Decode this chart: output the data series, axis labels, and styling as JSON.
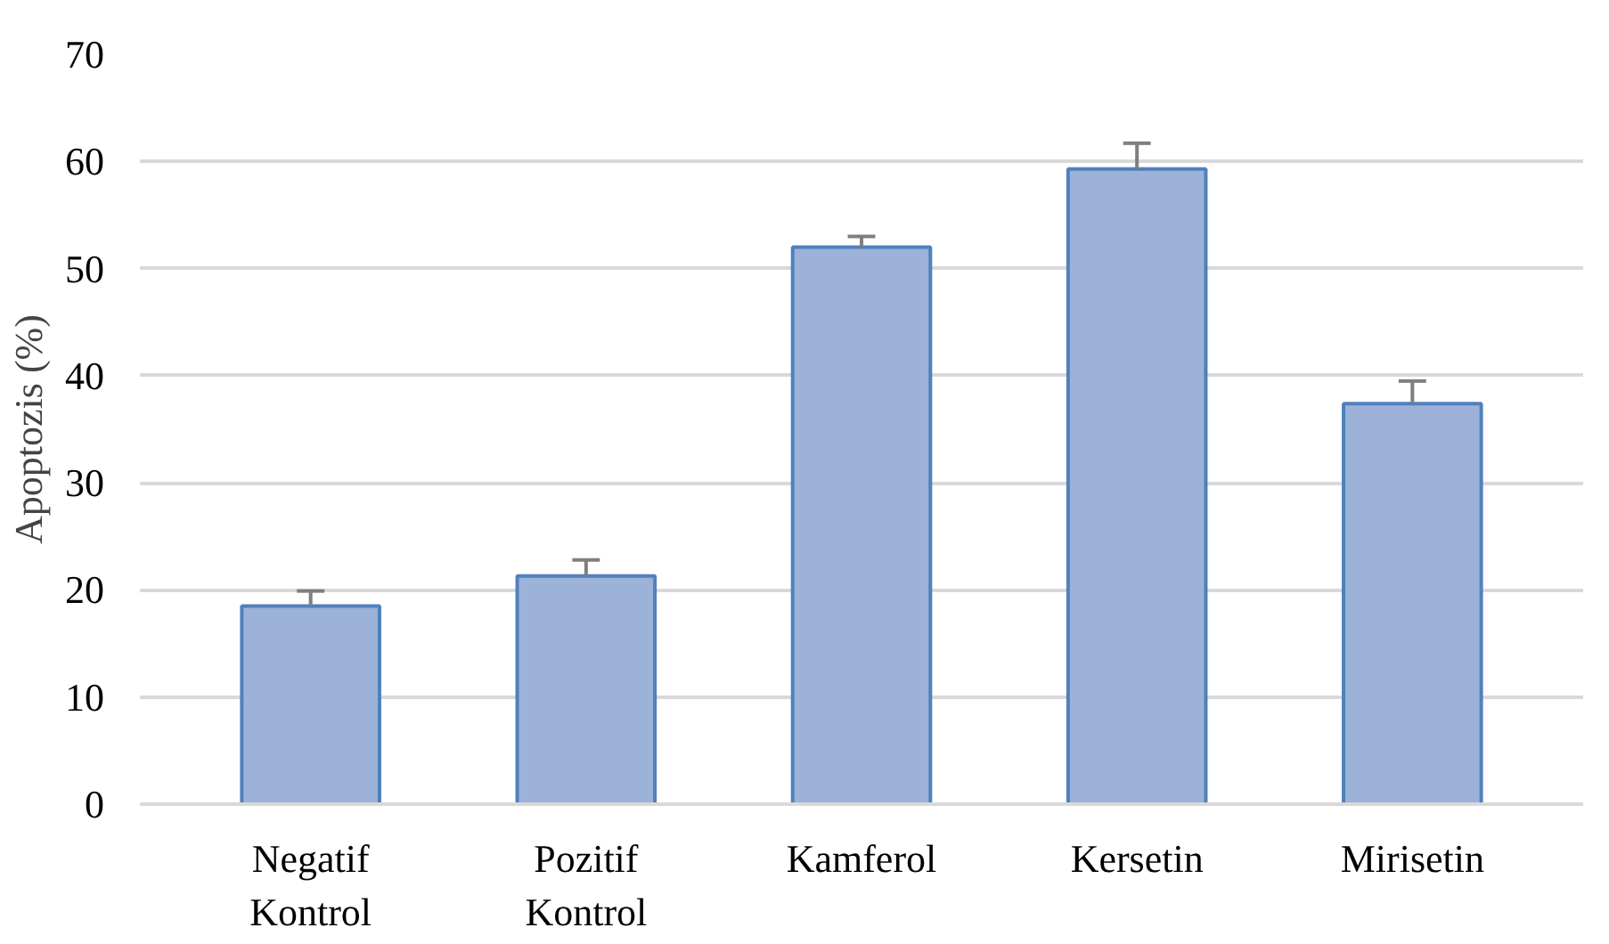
{
  "chart_data": {
    "type": "bar",
    "ylabel": "Apoptozis (%)",
    "categories": [
      "Negatif\nKontrol",
      "Pozitif\nKontrol",
      "Kamferol",
      "Kersetin",
      "Mirisetin"
    ],
    "values": [
      18.5,
      21.3,
      52.0,
      59.3,
      37.4
    ],
    "errors": [
      [
        18.5,
        19.9
      ],
      [
        21.3,
        22.8
      ],
      [
        52.0,
        53.0
      ],
      [
        59.3,
        61.7
      ],
      [
        37.4,
        39.5
      ]
    ],
    "color": "#9db2d9",
    "ylim": [
      0,
      70
    ],
    "yticks": [
      0,
      10,
      20,
      30,
      40,
      50,
      60,
      70
    ],
    "grid": "y"
  }
}
